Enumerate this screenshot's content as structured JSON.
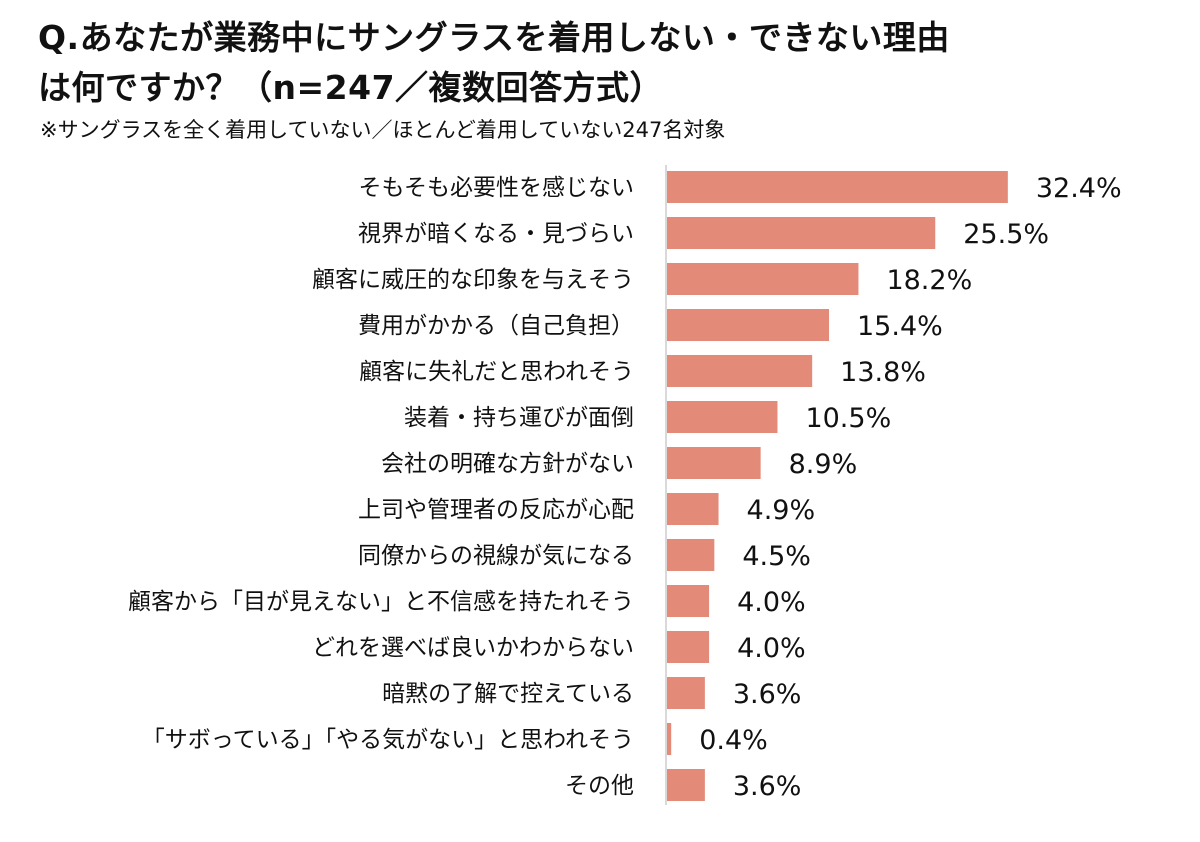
{
  "chart_data": {
    "type": "bar",
    "orientation": "horizontal",
    "title": "Q.あなたが業務中にサングラスを着用しない・できない理由は何ですか？（n=247／複数回答方式）",
    "title_lines": [
      "Q.あなたが業務中にサングラスを着用しない・できない理由",
      "は何ですか？（n=247／複数回答方式）"
    ],
    "subtitle": "※サングラスを全く着用していない／ほとんど着用していない247名対象",
    "categories": [
      "そもそも必要性を感じない",
      "視界が暗くなる・見づらい",
      "顧客に威圧的な印象を与えそう",
      "費用がかかる（自己負担）",
      "顧客に失礼だと思われそう",
      "装着・持ち運びが面倒",
      "会社の明確な方針がない",
      "上司や管理者の反応が心配",
      "同僚からの視線が気になる",
      "顧客から「目が見えない」と不信感を持たれそう",
      "どれを選べば良いかわからない",
      "暗黙の了解で控えている",
      "「サボっている」「やる気がない」と思われそう",
      "その他"
    ],
    "values": [
      32.4,
      25.5,
      18.2,
      15.4,
      13.8,
      10.5,
      8.9,
      4.9,
      4.5,
      4.0,
      4.0,
      3.6,
      0.4,
      3.6
    ],
    "value_labels": [
      "32.4%",
      "25.5%",
      "18.2%",
      "15.4%",
      "13.8%",
      "10.5%",
      "8.9%",
      "4.9%",
      "4.5%",
      "4.0%",
      "4.0%",
      "3.6%",
      "0.4%",
      "3.6%"
    ],
    "unit": "%",
    "grid": false,
    "legend": "none",
    "colors": {
      "bar": "#E48A78",
      "axis": "#D9D9D9",
      "text": "#111111"
    }
  }
}
